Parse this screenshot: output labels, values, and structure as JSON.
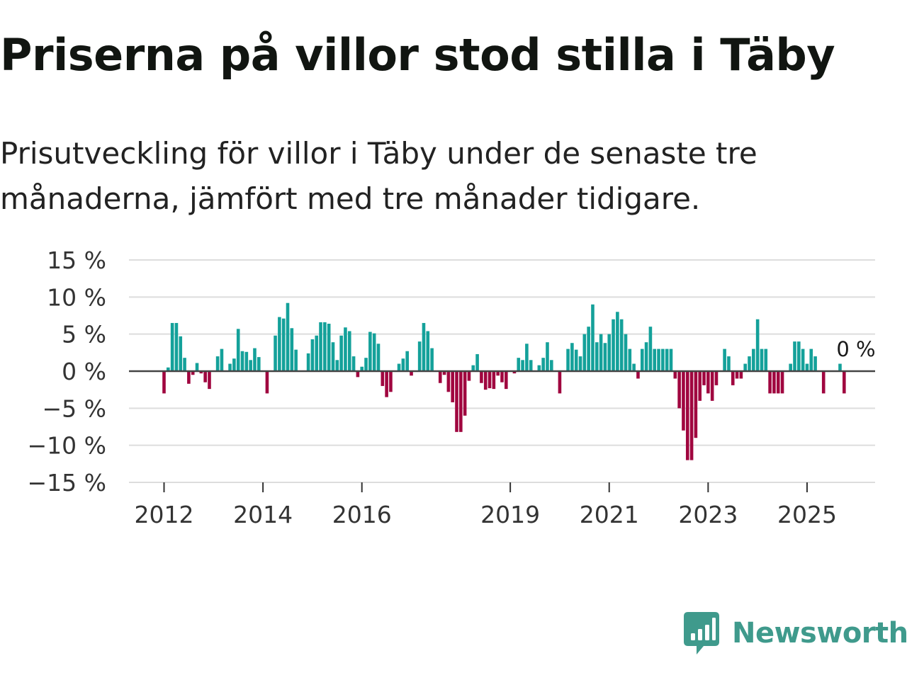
{
  "header": {
    "title": "Priserna på villor stod stilla i Täby",
    "subtitle": "Prisutveckling för villor i Täby under de senaste tre månaderna, jämfört med tre månader tidigare."
  },
  "brand": {
    "name": "Newsworthy",
    "logo_icon": "bar-chart-speech-bubble-icon"
  },
  "colors": {
    "positive": "#14a19a",
    "negative": "#a0063f",
    "grid": "#dddddd",
    "zero_line": "#444444",
    "brand": "#3f9a8c"
  },
  "chart_data": {
    "type": "bar",
    "title": "Priserna på villor stod stilla i Täby",
    "subtitle": "Prisutveckling för villor i Täby under de senaste tre månaderna, jämfört med tre månader tidigare.",
    "xlabel": "",
    "ylabel": "",
    "start": "2012-01",
    "frequency": "monthly",
    "ylim": [
      -15,
      15
    ],
    "yticks": [
      15,
      10,
      5,
      0,
      -5,
      -10,
      -15
    ],
    "ytick_labels": [
      "15 %",
      "10 %",
      "5 %",
      "0 %",
      "−5 %",
      "−10 %",
      "−15 %"
    ],
    "xticks": [
      "2012",
      "2014",
      "2016",
      "2019",
      "2021",
      "2023",
      "2025"
    ],
    "grid": true,
    "last_value_label": "0 %",
    "values": [
      -3,
      0.5,
      6.5,
      6.5,
      4.7,
      1.8,
      -1.7,
      -0.5,
      1.1,
      -0.3,
      -1.5,
      -2.4,
      0,
      2,
      3,
      0,
      1,
      1.7,
      5.7,
      2.7,
      2.6,
      1.5,
      3.1,
      1.9,
      0,
      -3,
      0,
      4.8,
      7.3,
      7.1,
      9.2,
      5.8,
      2.9,
      0,
      0,
      2.4,
      4.3,
      4.8,
      6.6,
      6.6,
      6.4,
      3.9,
      1.5,
      4.8,
      5.9,
      5.4,
      2,
      -0.8,
      0.6,
      1.8,
      5.3,
      5.1,
      3.7,
      -2,
      -3.5,
      -2.8,
      0,
      1,
      1.7,
      2.7,
      -0.6,
      0,
      4,
      6.5,
      5.4,
      3.1,
      0,
      -1.6,
      -0.5,
      -2.8,
      -4.2,
      -8.2,
      -8.2,
      -6,
      -1.3,
      0.8,
      2.3,
      -1.6,
      -2.5,
      -2.3,
      -2.4,
      -0.6,
      -1.5,
      -2.4,
      0,
      -0.3,
      1.8,
      1.5,
      3.7,
      1.5,
      0,
      0.8,
      1.8,
      3.9,
      1.5,
      0,
      -3,
      0,
      3,
      3.8,
      2.9,
      2,
      5,
      6,
      9,
      3.9,
      5,
      3.8,
      5,
      7,
      8,
      7,
      5,
      3,
      1,
      -1,
      3,
      3.9,
      6,
      3,
      3,
      3,
      3,
      3,
      -1,
      -5,
      -8,
      -12,
      -12,
      -9,
      -4,
      -1.9,
      -3,
      -4,
      -1.9,
      0,
      3,
      2,
      -1.9,
      -1,
      -1,
      1,
      2,
      3,
      7,
      3,
      3,
      -3,
      -3,
      -3,
      -3,
      0,
      1,
      4,
      4,
      3,
      1,
      3,
      2,
      0,
      -3,
      0,
      0,
      0,
      1,
      -3,
      0,
      0
    ]
  }
}
